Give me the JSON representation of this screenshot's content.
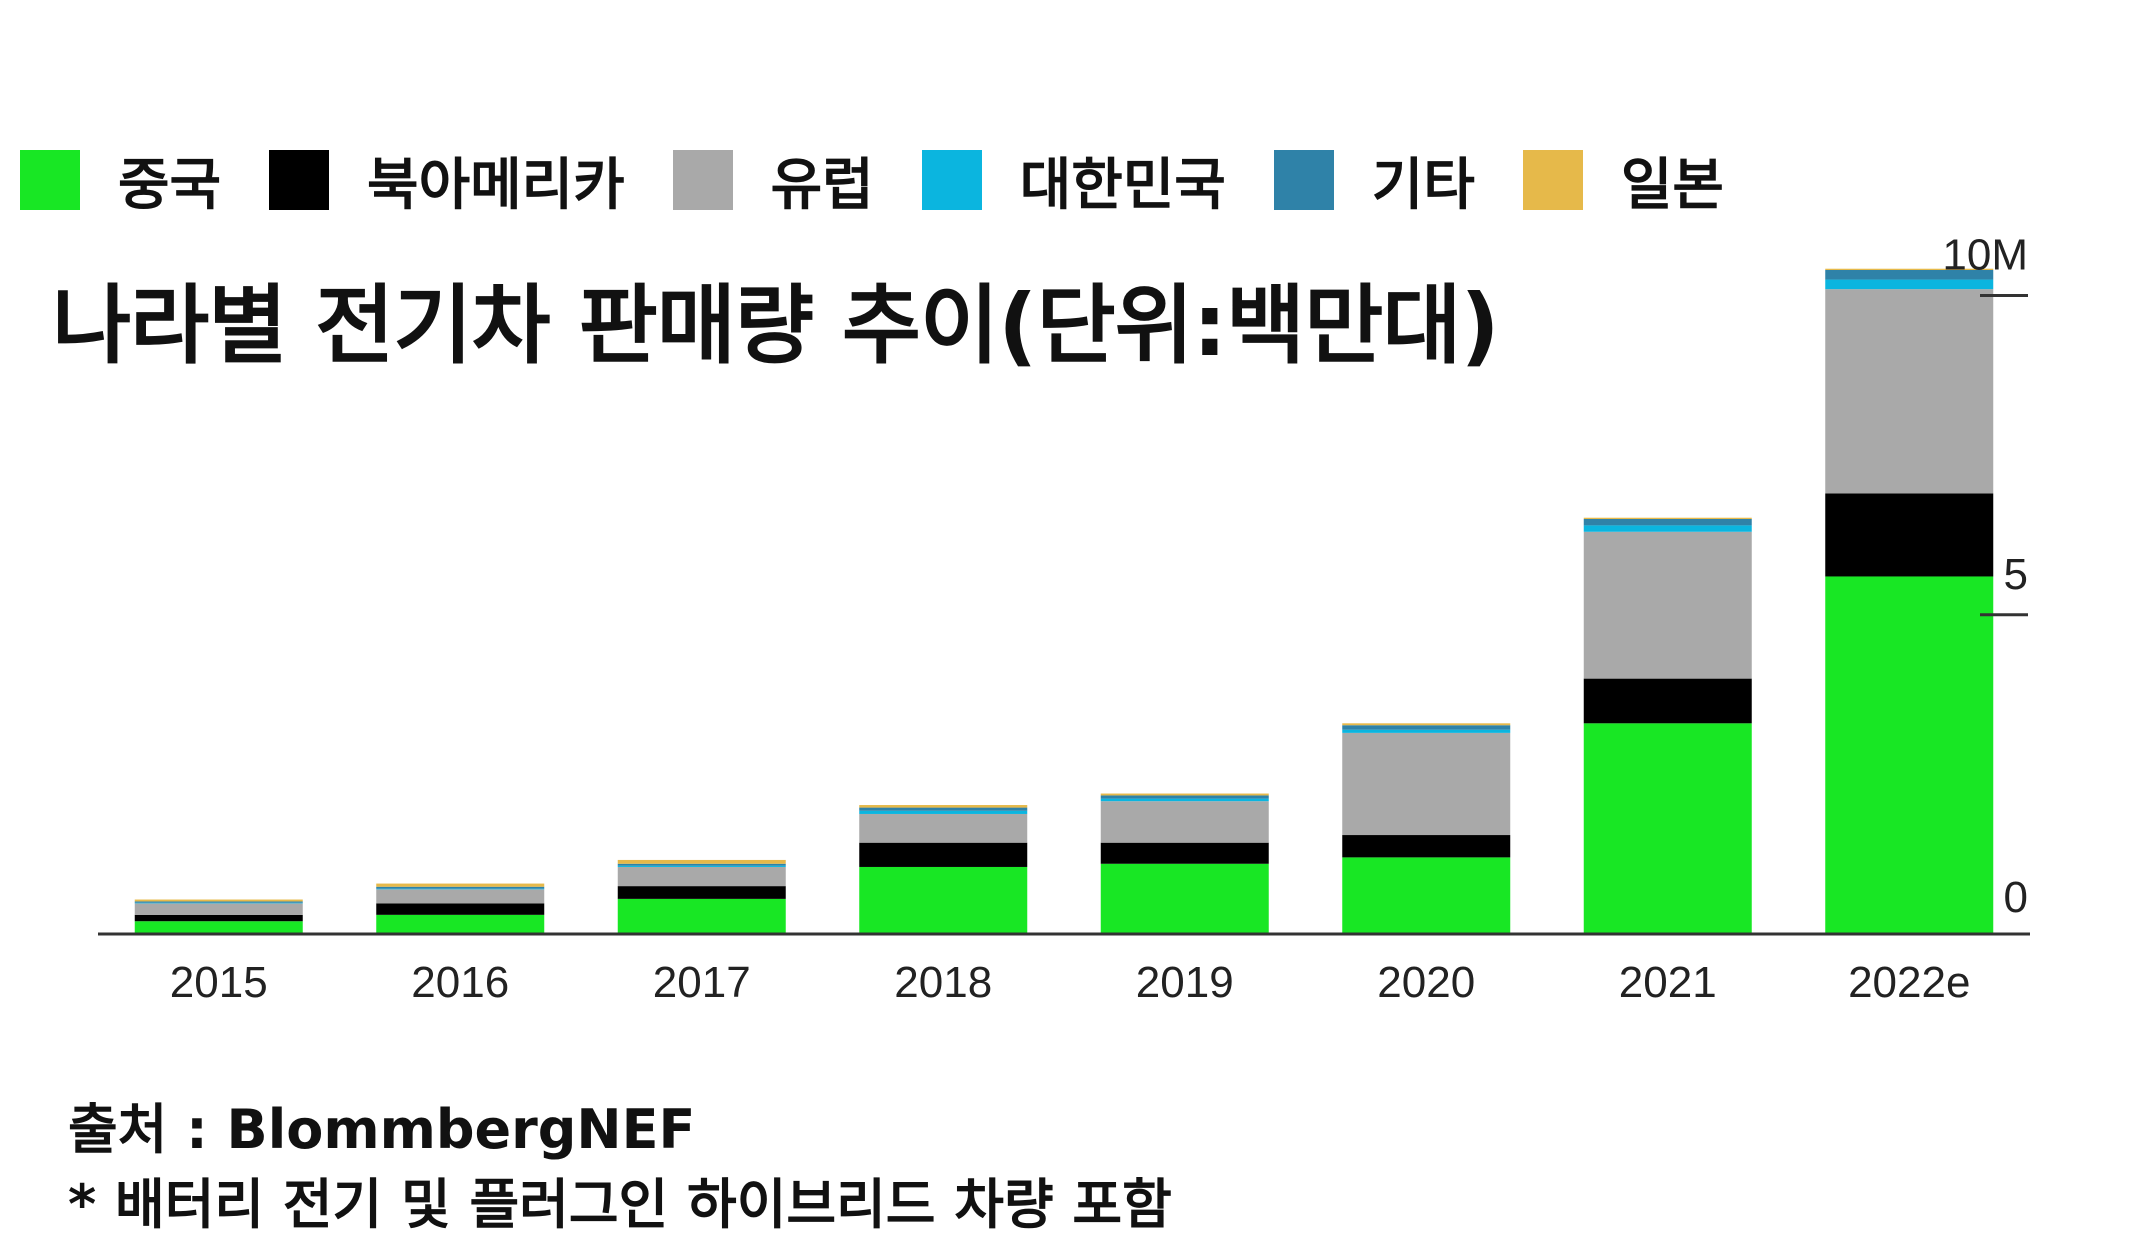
{
  "legend": [
    {
      "label": "중국",
      "color": "#18e724"
    },
    {
      "label": "북아메리카",
      "color": "#000000"
    },
    {
      "label": "유럽",
      "color": "#a9a9a9"
    },
    {
      "label": "대한민국",
      "color": "#0bb5df"
    },
    {
      "label": "기타",
      "color": "#2f82a8"
    },
    {
      "label": "일본",
      "color": "#e6b94a"
    }
  ],
  "title": "나라별 전기차 판매량 추이(단위:백만대)",
  "footer": {
    "source": "출처 : BlommbergNEF",
    "note": "* 배터리 전기 및 플러그인 하이브리드 차량 포함"
  },
  "chart_data": {
    "type": "bar",
    "stacked": true,
    "categories": [
      "2015",
      "2016",
      "2017",
      "2018",
      "2019",
      "2020",
      "2021",
      "2022e"
    ],
    "series": [
      {
        "name": "중국",
        "color": "#18e724",
        "values": [
          0.2,
          0.3,
          0.55,
          1.05,
          1.1,
          1.2,
          3.3,
          5.6
        ]
      },
      {
        "name": "북아메리카",
        "color": "#000000",
        "values": [
          0.1,
          0.18,
          0.2,
          0.38,
          0.33,
          0.35,
          0.7,
          1.3
        ]
      },
      {
        "name": "유럽",
        "color": "#a9a9a9",
        "values": [
          0.18,
          0.22,
          0.3,
          0.45,
          0.65,
          1.6,
          2.3,
          3.2
        ]
      },
      {
        "name": "대한민국",
        "color": "#0bb5df",
        "values": [
          0.01,
          0.01,
          0.02,
          0.05,
          0.04,
          0.05,
          0.1,
          0.15
        ]
      },
      {
        "name": "기타",
        "color": "#2f82a8",
        "values": [
          0.02,
          0.03,
          0.03,
          0.05,
          0.05,
          0.07,
          0.1,
          0.15
        ]
      },
      {
        "name": "일본",
        "color": "#e6b94a",
        "values": [
          0.03,
          0.05,
          0.06,
          0.04,
          0.03,
          0.03,
          0.02,
          0.02
        ]
      }
    ],
    "yticks": [
      {
        "value": 0,
        "label": "0"
      },
      {
        "value": 5,
        "label": "5"
      },
      {
        "value": 10,
        "label": "10M"
      }
    ],
    "ylim": [
      0,
      10.4
    ]
  }
}
